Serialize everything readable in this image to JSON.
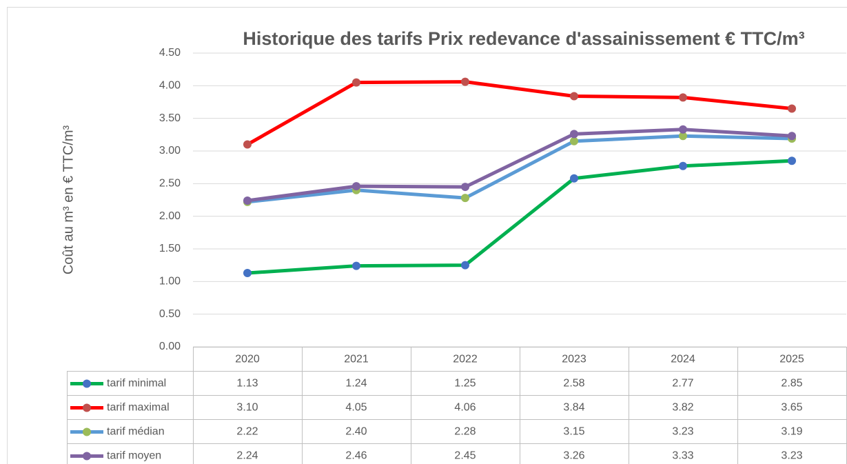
{
  "chart_data": {
    "type": "line",
    "title": "Historique des tarifs Prix redevance d'assainissement € TTC/m³",
    "y_label": "Coût au m³ en € TTC/m³",
    "categories": [
      "2020",
      "2021",
      "2022",
      "2023",
      "2024",
      "2025"
    ],
    "series": [
      {
        "name": "tarif minimal",
        "color": "#00b050",
        "marker_color": "#4472c4",
        "values": [
          1.13,
          1.24,
          1.25,
          2.58,
          2.77,
          2.85
        ],
        "value_labels": [
          "1.13",
          "1.24",
          "1.25",
          "2.58",
          "2.77",
          "2.85"
        ]
      },
      {
        "name": "tarif maximal",
        "color": "#ff0000",
        "marker_color": "#c0504d",
        "values": [
          3.1,
          4.05,
          4.06,
          3.84,
          3.82,
          3.65
        ],
        "value_labels": [
          "3.10",
          "4.05",
          "4.06",
          "3.84",
          "3.82",
          "3.65"
        ]
      },
      {
        "name": "tarif médian",
        "color": "#5b9bd5",
        "marker_color": "#9bbb59",
        "values": [
          2.22,
          2.4,
          2.28,
          3.15,
          3.23,
          3.19
        ],
        "value_labels": [
          "2.22",
          "2.40",
          "2.28",
          "3.15",
          "3.23",
          "3.19"
        ]
      },
      {
        "name": "tarif moyen",
        "color": "#8064a2",
        "marker_color": "#8064a2",
        "values": [
          2.24,
          2.46,
          2.45,
          3.26,
          3.33,
          3.23
        ],
        "value_labels": [
          "2.24",
          "2.46",
          "2.45",
          "3.26",
          "3.33",
          "3.23"
        ]
      }
    ],
    "ylim": [
      0,
      4.5
    ],
    "yticks": [
      {
        "value": 0,
        "label": "0.00"
      },
      {
        "value": 0.5,
        "label": "0.50"
      },
      {
        "value": 1,
        "label": "1.00"
      },
      {
        "value": 1.5,
        "label": "1.50"
      },
      {
        "value": 2,
        "label": "2.00"
      },
      {
        "value": 2.5,
        "label": "2.50"
      },
      {
        "value": 3,
        "label": "3.00"
      },
      {
        "value": 3.5,
        "label": "3.50"
      },
      {
        "value": 4,
        "label": "4.00"
      },
      {
        "value": 4.5,
        "label": "4.50"
      }
    ],
    "grid": true
  }
}
